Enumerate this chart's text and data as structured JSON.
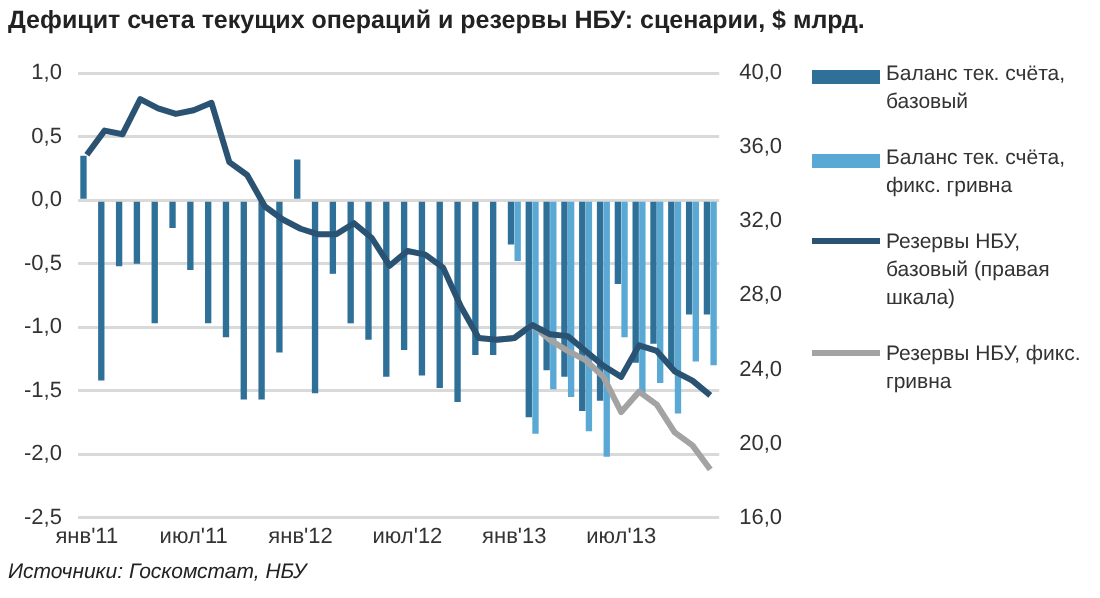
{
  "chart_data": {
    "type": "bar",
    "title": "Дефицит счета текущих операций и резервы НБУ: сценарии, $ млрд.",
    "annotations": [
      "Источники: Госкомстат, НБУ"
    ],
    "categories": [
      "янв'11",
      null,
      null,
      null,
      null,
      null,
      "июл'11",
      null,
      null,
      null,
      null,
      null,
      "янв'12",
      null,
      null,
      null,
      null,
      null,
      "июл'12",
      null,
      null,
      null,
      null,
      null,
      "янв'13",
      null,
      null,
      null,
      null,
      null,
      "июл'13",
      null,
      null,
      null,
      null,
      null
    ],
    "series": [
      {
        "name": "Баланс тек. счёта, базовый",
        "color": "#2f7099",
        "values": [
          0.35,
          -1.42,
          -0.52,
          -0.5,
          -0.97,
          -0.22,
          -0.55,
          -0.97,
          -1.08,
          -1.57,
          -1.57,
          -1.2,
          0.32,
          -1.52,
          -0.58,
          -0.97,
          -1.1,
          -1.39,
          -1.18,
          -1.38,
          -1.48,
          -1.59,
          -1.22,
          -1.22,
          -0.35,
          -1.71,
          -1.34,
          -1.39,
          -1.66,
          -1.58,
          -0.66,
          -1.28,
          -1.13,
          -1.31,
          -0.9,
          -0.9
        ]
      },
      {
        "name": "Баланс тек. счёта, фикс. гривна",
        "color": "#5aa8d4",
        "values": [
          null,
          null,
          null,
          null,
          null,
          null,
          null,
          null,
          null,
          null,
          null,
          null,
          null,
          null,
          null,
          null,
          null,
          null,
          null,
          null,
          null,
          null,
          null,
          null,
          -0.48,
          -1.84,
          -1.49,
          -1.55,
          -1.82,
          -2.02,
          -1.08,
          -1.52,
          -1.44,
          -1.68,
          -1.27,
          -1.3
        ]
      },
      {
        "name": "Резервы НБУ, базовый (правая шкала)",
        "type": "line",
        "axis": "y2",
        "color": "#2a5272",
        "values": [
          35.6,
          36.9,
          36.7,
          38.6,
          38.1,
          37.8,
          38.0,
          38.4,
          35.2,
          34.5,
          32.8,
          32.1,
          31.6,
          31.3,
          31.3,
          31.9,
          31.1,
          29.6,
          30.4,
          30.2,
          29.5,
          27.4,
          25.7,
          25.6,
          25.7,
          26.4,
          25.9,
          25.8,
          25.0,
          24.2,
          23.6,
          25.3,
          25.0,
          23.9,
          23.4,
          22.6
        ]
      },
      {
        "name": "Резервы НБУ, фикс. гривна",
        "type": "line",
        "axis": "y2",
        "color": "#a3a3a3",
        "values": [
          null,
          null,
          null,
          null,
          null,
          null,
          null,
          null,
          null,
          null,
          null,
          null,
          null,
          null,
          null,
          null,
          null,
          null,
          null,
          null,
          null,
          null,
          null,
          25.6,
          25.7,
          26.4,
          25.6,
          25.0,
          24.5,
          23.6,
          21.7,
          22.8,
          22.1,
          20.6,
          19.9,
          18.6
        ]
      }
    ],
    "ylim": [
      -2.5,
      1.0
    ],
    "yticks": [
      {
        "value": -2.5,
        "label": "-2,5"
      },
      {
        "value": -2,
        "label": "-2,0"
      },
      {
        "value": -1.5,
        "label": "-1,5"
      },
      {
        "value": -1,
        "label": "-1,0"
      },
      {
        "value": -0.5,
        "label": "-0,5"
      },
      {
        "value": 0,
        "label": "0,0"
      },
      {
        "value": 0.5,
        "label": "0,5"
      },
      {
        "value": 1,
        "label": "1,0"
      }
    ],
    "y2lim": [
      16,
      40
    ],
    "y2ticks": [
      {
        "value": 16,
        "label": "16,0"
      },
      {
        "value": 20,
        "label": "20,0"
      },
      {
        "value": 24,
        "label": "24,0"
      },
      {
        "value": 28,
        "label": "28,0"
      },
      {
        "value": 32,
        "label": "32,0"
      },
      {
        "value": 36,
        "label": "36,0"
      },
      {
        "value": 40,
        "label": "40,0"
      }
    ],
    "grid": "y",
    "legend": "right",
    "marker": "none",
    "line_style": "solid"
  }
}
